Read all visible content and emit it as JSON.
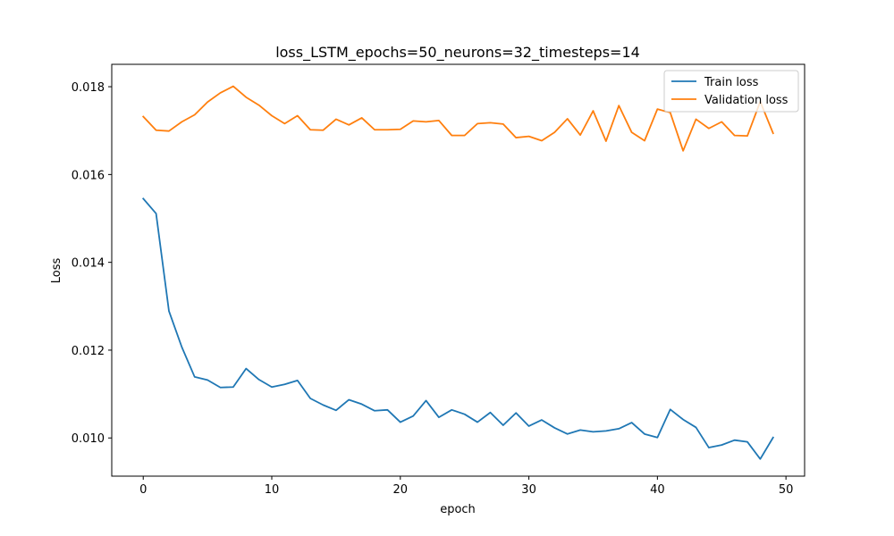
{
  "chart_data": {
    "type": "line",
    "title": "loss_LSTM_epochs=50_neurons=32_timesteps=14",
    "xlabel": "epoch",
    "ylabel": "Loss",
    "xlim": [
      -2.45,
      51.45
    ],
    "ylim": [
      0.00913,
      0.01851
    ],
    "xticks": [
      0,
      10,
      20,
      30,
      40,
      50
    ],
    "xtick_labels": [
      "0",
      "10",
      "20",
      "30",
      "40",
      "50"
    ],
    "yticks": [
      0.01,
      0.012,
      0.014,
      0.016,
      0.018
    ],
    "ytick_labels": [
      "0.010",
      "0.012",
      "0.014",
      "0.016",
      "0.018"
    ],
    "grid": false,
    "legend_position": "top-right",
    "x": [
      0,
      1,
      2,
      3,
      4,
      5,
      6,
      7,
      8,
      9,
      10,
      11,
      12,
      13,
      14,
      15,
      16,
      17,
      18,
      19,
      20,
      21,
      22,
      23,
      24,
      25,
      26,
      27,
      28,
      29,
      30,
      31,
      32,
      33,
      34,
      35,
      36,
      37,
      38,
      39,
      40,
      41,
      42,
      43,
      44,
      45,
      46,
      47,
      48,
      49
    ],
    "series": [
      {
        "name": "Train loss",
        "color": "#1f77b4",
        "values": [
          0.01545,
          0.01511,
          0.01289,
          0.01207,
          0.01139,
          0.01132,
          0.01115,
          0.01116,
          0.01158,
          0.01133,
          0.01116,
          0.01122,
          0.01131,
          0.0109,
          0.01075,
          0.01063,
          0.01087,
          0.01077,
          0.01062,
          0.01064,
          0.01036,
          0.0105,
          0.01085,
          0.01047,
          0.01064,
          0.01054,
          0.01036,
          0.01058,
          0.01029,
          0.01057,
          0.01027,
          0.01041,
          0.01023,
          0.01009,
          0.01018,
          0.01014,
          0.01016,
          0.01021,
          0.01035,
          0.01009,
          0.01001,
          0.01065,
          0.01042,
          0.01024,
          0.00978,
          0.00984,
          0.00995,
          0.00991,
          0.00952,
          0.01001
        ]
      },
      {
        "name": "Validation loss",
        "color": "#ff7f0e",
        "values": [
          0.01732,
          0.01701,
          0.01699,
          0.0172,
          0.01736,
          0.01765,
          0.01786,
          0.01801,
          0.01776,
          0.01758,
          0.01734,
          0.01716,
          0.01734,
          0.01702,
          0.01701,
          0.01726,
          0.01713,
          0.01729,
          0.01702,
          0.01702,
          0.01703,
          0.01722,
          0.0172,
          0.01723,
          0.01689,
          0.01689,
          0.01716,
          0.01718,
          0.01715,
          0.01684,
          0.01687,
          0.01677,
          0.01696,
          0.01727,
          0.0169,
          0.01745,
          0.01676,
          0.01757,
          0.01696,
          0.01677,
          0.01749,
          0.01741,
          0.01654,
          0.01726,
          0.01705,
          0.0172,
          0.01689,
          0.01688,
          0.01766,
          0.01694
        ]
      }
    ]
  }
}
